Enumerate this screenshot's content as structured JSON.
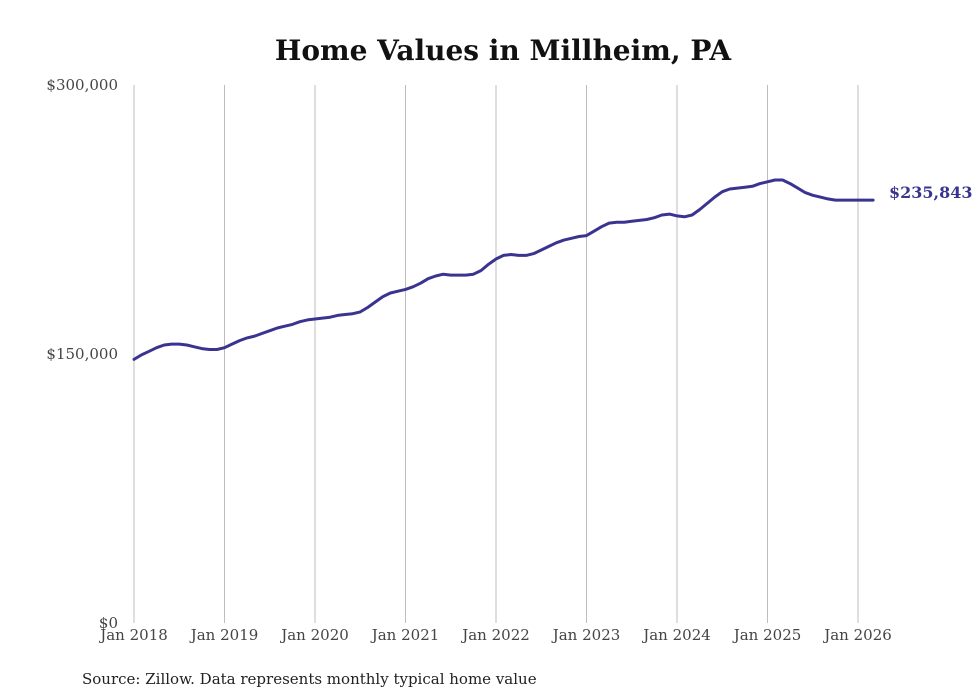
{
  "chart_data": {
    "type": "line",
    "title": "Home Values in Millheim, PA",
    "source": "Source: Zillow. Data represents monthly typical home value",
    "xlabel": "",
    "ylabel": "",
    "x_tick_labels": [
      "Jan 2018",
      "Jan 2019",
      "Jan 2020",
      "Jan 2021",
      "Jan 2022",
      "Jan 2023",
      "Jan 2024",
      "Jan 2025",
      "Jan 2026"
    ],
    "y_tick_labels": [
      "$0",
      "$150,000",
      "$300,000"
    ],
    "y_ticks": [
      0,
      150000,
      300000
    ],
    "ylim": [
      0,
      300000
    ],
    "xlim": [
      "2018-01",
      "2026-03"
    ],
    "grid": "vertical",
    "line_color": "#3a3491",
    "end_label": "$235,843",
    "series": [
      {
        "x": [
          "2018-01",
          "2018-02",
          "2018-03",
          "2018-04",
          "2018-05",
          "2018-06",
          "2018-07",
          "2018-08",
          "2018-09",
          "2018-10",
          "2018-11",
          "2018-12",
          "2019-01",
          "2019-02",
          "2019-03",
          "2019-04",
          "2019-05",
          "2019-06",
          "2019-07",
          "2019-08",
          "2019-09",
          "2019-10",
          "2019-11",
          "2019-12",
          "2020-01",
          "2020-02",
          "2020-03",
          "2020-04",
          "2020-05",
          "2020-06",
          "2020-07",
          "2020-08",
          "2020-09",
          "2020-10",
          "2020-11",
          "2020-12",
          "2021-01",
          "2021-02",
          "2021-03",
          "2021-04",
          "2021-05",
          "2021-06",
          "2021-07",
          "2021-08",
          "2021-09",
          "2021-10",
          "2021-11",
          "2021-12",
          "2022-01",
          "2022-02",
          "2022-03",
          "2022-04",
          "2022-05",
          "2022-06",
          "2022-07",
          "2022-08",
          "2022-09",
          "2022-10",
          "2022-11",
          "2022-12",
          "2023-01",
          "2023-02",
          "2023-03",
          "2023-04",
          "2023-05",
          "2023-06",
          "2023-07",
          "2023-08",
          "2023-09",
          "2023-10",
          "2023-11",
          "2023-12",
          "2024-01",
          "2024-02",
          "2024-03",
          "2024-04",
          "2024-05",
          "2024-06",
          "2024-07",
          "2024-08",
          "2024-09",
          "2024-10",
          "2024-11",
          "2024-12",
          "2025-01",
          "2025-02",
          "2025-03",
          "2025-04",
          "2025-05",
          "2025-06",
          "2025-07",
          "2025-08",
          "2025-09",
          "2025-10",
          "2025-11",
          "2025-12",
          "2026-01",
          "2026-02",
          "2026-03"
        ],
        "values": [
          147000,
          149500,
          151500,
          153500,
          155000,
          155500,
          155500,
          155000,
          154000,
          153000,
          152500,
          152500,
          153500,
          155500,
          157500,
          159000,
          160000,
          161500,
          163000,
          164500,
          165500,
          166500,
          168000,
          169000,
          169500,
          170000,
          170500,
          171500,
          172000,
          172500,
          173500,
          176000,
          179000,
          182000,
          184000,
          185000,
          186000,
          187500,
          189500,
          192000,
          193500,
          194500,
          194000,
          194000,
          194000,
          194500,
          196500,
          200000,
          203000,
          205000,
          205500,
          205000,
          205000,
          206000,
          208000,
          210000,
          212000,
          213500,
          214500,
          215500,
          216000,
          218500,
          221000,
          223000,
          223500,
          223500,
          224000,
          224500,
          225000,
          226000,
          227500,
          228000,
          227000,
          226500,
          227500,
          230500,
          234000,
          237500,
          240500,
          242000,
          242500,
          243000,
          243500,
          245000,
          246000,
          247000,
          247000,
          245000,
          242500,
          240000,
          238500,
          237500,
          236500,
          235843,
          235843,
          235843,
          235843,
          235843,
          235843
        ]
      }
    ]
  }
}
